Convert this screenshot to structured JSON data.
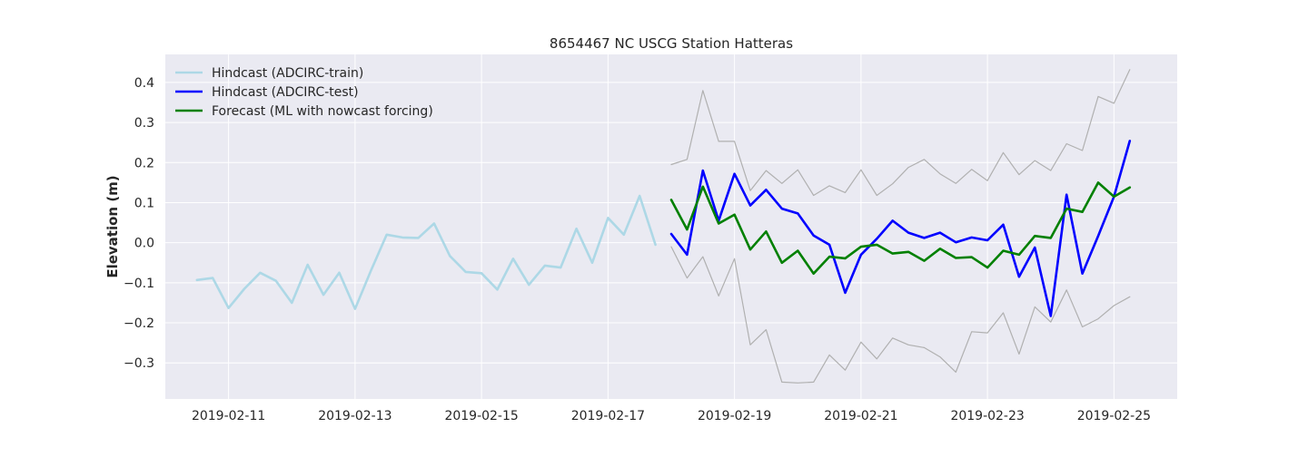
{
  "chart_data": {
    "type": "line",
    "title": "8654467 NC USCG Station Hatteras",
    "xlabel": "",
    "ylabel": "Elevation (m)",
    "x_axis": "date",
    "xlim": [
      "2019-02-10T00:00",
      "2019-02-26T00:00"
    ],
    "ylim": [
      -0.39,
      0.47
    ],
    "xticks": [
      "2019-02-11",
      "2019-02-13",
      "2019-02-15",
      "2019-02-17",
      "2019-02-19",
      "2019-02-21",
      "2019-02-23",
      "2019-02-25"
    ],
    "yticks": [
      -0.3,
      -0.2,
      -0.1,
      0.0,
      0.1,
      0.2,
      0.3,
      0.4
    ],
    "ytick_labels": [
      "−0.3",
      "−0.2",
      "−0.1",
      "0.0",
      "0.1",
      "0.2",
      "0.3",
      "0.4"
    ],
    "grid": true,
    "legend_position": "upper-left",
    "background": "#eaeaf2",
    "series": [
      {
        "name": "Hindcast (ADCIRC-train)",
        "color": "#add8e6",
        "x": [
          "2019-02-10T12:00",
          "2019-02-10T18:00",
          "2019-02-11T00:00",
          "2019-02-11T06:00",
          "2019-02-11T12:00",
          "2019-02-11T18:00",
          "2019-02-12T00:00",
          "2019-02-12T06:00",
          "2019-02-12T12:00",
          "2019-02-12T18:00",
          "2019-02-13T00:00",
          "2019-02-13T06:00",
          "2019-02-13T12:00",
          "2019-02-13T18:00",
          "2019-02-14T00:00",
          "2019-02-14T06:00",
          "2019-02-14T12:00",
          "2019-02-14T18:00",
          "2019-02-15T00:00",
          "2019-02-15T06:00",
          "2019-02-15T12:00",
          "2019-02-15T18:00",
          "2019-02-16T00:00",
          "2019-02-16T06:00",
          "2019-02-16T12:00",
          "2019-02-16T18:00",
          "2019-02-17T00:00",
          "2019-02-17T06:00",
          "2019-02-17T12:00",
          "2019-02-17T18:00"
        ],
        "y": [
          -0.093,
          -0.088,
          -0.163,
          -0.115,
          -0.075,
          -0.095,
          -0.15,
          -0.055,
          -0.13,
          -0.075,
          -0.165,
          -0.07,
          0.02,
          0.013,
          0.012,
          0.048,
          -0.033,
          -0.073,
          -0.076,
          -0.117,
          -0.04,
          -0.105,
          -0.057,
          -0.062,
          0.035,
          -0.05,
          0.062,
          0.02,
          0.117,
          -0.005
        ]
      },
      {
        "name": "Hindcast (ADCIRC-test)",
        "color": "#0000ff",
        "x": [
          "2019-02-18T00:00",
          "2019-02-18T06:00",
          "2019-02-18T12:00",
          "2019-02-18T18:00",
          "2019-02-19T00:00",
          "2019-02-19T06:00",
          "2019-02-19T12:00",
          "2019-02-19T18:00",
          "2019-02-20T00:00",
          "2019-02-20T06:00",
          "2019-02-20T12:00",
          "2019-02-20T18:00",
          "2019-02-21T00:00",
          "2019-02-21T06:00",
          "2019-02-21T12:00",
          "2019-02-21T18:00",
          "2019-02-22T00:00",
          "2019-02-22T06:00",
          "2019-02-22T12:00",
          "2019-02-22T18:00",
          "2019-02-23T00:00",
          "2019-02-23T06:00",
          "2019-02-23T12:00",
          "2019-02-23T18:00",
          "2019-02-24T00:00",
          "2019-02-24T06:00",
          "2019-02-24T12:00",
          "2019-02-24T18:00",
          "2019-02-25T00:00",
          "2019-02-25T06:00"
        ],
        "y": [
          0.022,
          -0.03,
          0.18,
          0.055,
          0.172,
          0.093,
          0.132,
          0.085,
          0.073,
          0.018,
          -0.005,
          -0.125,
          -0.03,
          0.01,
          0.055,
          0.025,
          0.012,
          0.025,
          0.001,
          0.013,
          0.006,
          0.045,
          -0.085,
          -0.012,
          -0.183,
          0.12,
          -0.077,
          0.017,
          0.115,
          0.254
        ]
      },
      {
        "name": "Forecast (ML with nowcast forcing)",
        "color": "#008000",
        "x": [
          "2019-02-18T00:00",
          "2019-02-18T06:00",
          "2019-02-18T12:00",
          "2019-02-18T18:00",
          "2019-02-19T00:00",
          "2019-02-19T06:00",
          "2019-02-19T12:00",
          "2019-02-19T18:00",
          "2019-02-20T00:00",
          "2019-02-20T06:00",
          "2019-02-20T12:00",
          "2019-02-20T18:00",
          "2019-02-21T00:00",
          "2019-02-21T06:00",
          "2019-02-21T12:00",
          "2019-02-21T18:00",
          "2019-02-22T00:00",
          "2019-02-22T06:00",
          "2019-02-22T12:00",
          "2019-02-22T18:00",
          "2019-02-23T00:00",
          "2019-02-23T06:00",
          "2019-02-23T12:00",
          "2019-02-23T18:00",
          "2019-02-24T00:00",
          "2019-02-24T06:00",
          "2019-02-24T12:00",
          "2019-02-24T18:00",
          "2019-02-25T00:00",
          "2019-02-25T06:00"
        ],
        "y": [
          0.107,
          0.033,
          0.14,
          0.048,
          0.07,
          -0.017,
          0.028,
          -0.05,
          -0.02,
          -0.077,
          -0.035,
          -0.039,
          -0.01,
          -0.005,
          -0.027,
          -0.023,
          -0.045,
          -0.015,
          -0.038,
          -0.036,
          -0.062,
          -0.02,
          -0.03,
          0.017,
          0.012,
          0.085,
          0.077,
          0.15,
          0.115,
          0.138
        ]
      },
      {
        "name": "",
        "color": "#b0b0b0",
        "x": [
          "2019-02-18T00:00",
          "2019-02-18T06:00",
          "2019-02-18T12:00",
          "2019-02-18T18:00",
          "2019-02-19T00:00",
          "2019-02-19T06:00",
          "2019-02-19T12:00",
          "2019-02-19T18:00",
          "2019-02-20T00:00",
          "2019-02-20T06:00",
          "2019-02-20T12:00",
          "2019-02-20T18:00",
          "2019-02-21T00:00",
          "2019-02-21T06:00",
          "2019-02-21T12:00",
          "2019-02-21T18:00",
          "2019-02-22T00:00",
          "2019-02-22T06:00",
          "2019-02-22T12:00",
          "2019-02-22T18:00",
          "2019-02-23T00:00",
          "2019-02-23T06:00",
          "2019-02-23T12:00",
          "2019-02-23T18:00",
          "2019-02-24T00:00",
          "2019-02-24T06:00",
          "2019-02-24T12:00",
          "2019-02-24T18:00",
          "2019-02-25T00:00",
          "2019-02-25T06:00"
        ],
        "y": [
          0.195,
          0.208,
          0.38,
          0.253,
          0.253,
          0.13,
          0.18,
          0.148,
          0.182,
          0.118,
          0.142,
          0.125,
          0.182,
          0.118,
          0.147,
          0.188,
          0.208,
          0.172,
          0.148,
          0.183,
          0.155,
          0.225,
          0.17,
          0.205,
          0.18,
          0.247,
          0.23,
          0.365,
          0.348,
          0.432
        ]
      },
      {
        "name": "",
        "color": "#b0b0b0",
        "x": [
          "2019-02-18T00:00",
          "2019-02-18T06:00",
          "2019-02-18T12:00",
          "2019-02-18T18:00",
          "2019-02-19T00:00",
          "2019-02-19T06:00",
          "2019-02-19T12:00",
          "2019-02-19T18:00",
          "2019-02-20T00:00",
          "2019-02-20T06:00",
          "2019-02-20T12:00",
          "2019-02-20T18:00",
          "2019-02-21T00:00",
          "2019-02-21T06:00",
          "2019-02-21T12:00",
          "2019-02-21T18:00",
          "2019-02-22T00:00",
          "2019-02-22T06:00",
          "2019-02-22T12:00",
          "2019-02-22T18:00",
          "2019-02-23T00:00",
          "2019-02-23T06:00",
          "2019-02-23T12:00",
          "2019-02-23T18:00",
          "2019-02-24T00:00",
          "2019-02-24T06:00",
          "2019-02-24T12:00",
          "2019-02-24T18:00",
          "2019-02-25T00:00",
          "2019-02-25T06:00"
        ],
        "y": [
          -0.01,
          -0.088,
          -0.035,
          -0.133,
          -0.04,
          -0.255,
          -0.217,
          -0.348,
          -0.35,
          -0.348,
          -0.28,
          -0.318,
          -0.248,
          -0.29,
          -0.238,
          -0.255,
          -0.262,
          -0.285,
          -0.323,
          -0.222,
          -0.225,
          -0.175,
          -0.278,
          -0.16,
          -0.198,
          -0.118,
          -0.21,
          -0.19,
          -0.157,
          -0.135
        ]
      }
    ]
  }
}
